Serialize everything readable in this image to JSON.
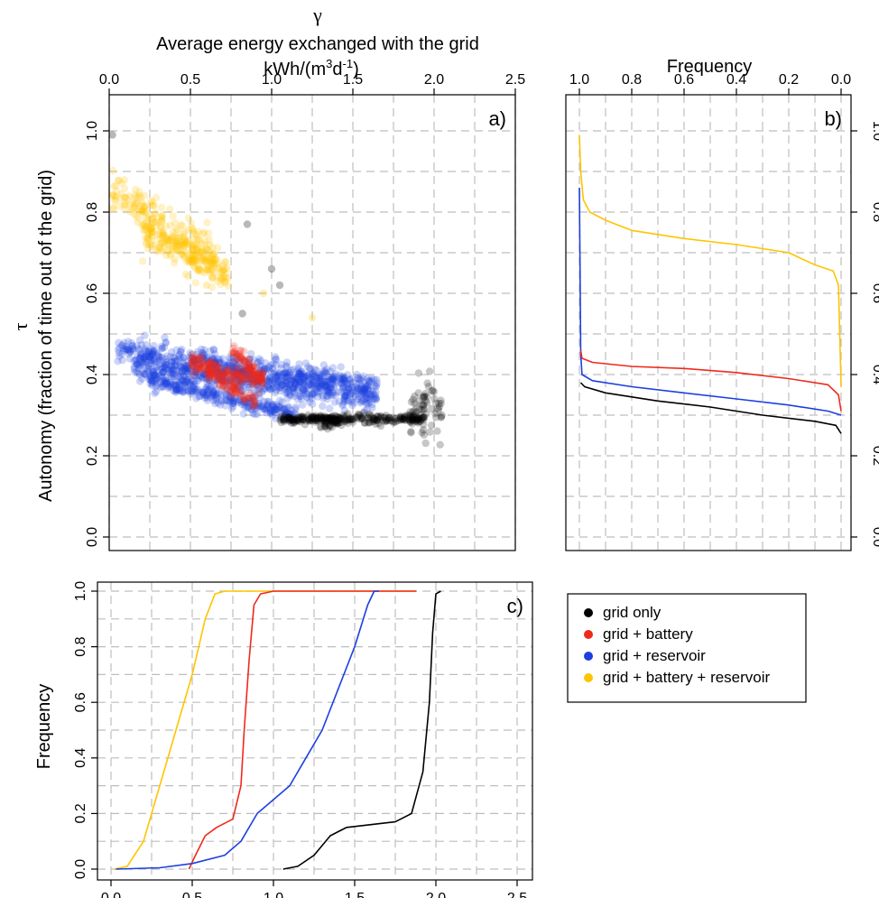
{
  "colors": {
    "grid_only": "#000000",
    "grid_battery": "#ee2a1c",
    "grid_reservoir": "#1c3fe0",
    "grid_battery_reservoir": "#ffc400",
    "grid_line": "#bdbdbd"
  },
  "top_axis": {
    "symbol": "γ",
    "title": "Average energy exchanged with the grid",
    "unit_prefix": "kWh/(m",
    "unit_sup1": "3",
    "unit_mid": "d",
    "unit_sup2": "-1",
    "unit_suffix": ")"
  },
  "left_axis": {
    "symbol": "τ",
    "title": "Autonomy (fraction of time out of the grid)"
  },
  "chart_data": [
    {
      "panel": "a)",
      "type": "scatter",
      "xlim": [
        0,
        2.5
      ],
      "ylim": [
        0,
        1.0
      ],
      "xticks": [
        "0.0",
        "0.5",
        "1.0",
        "1.5",
        "2.0",
        "2.5"
      ],
      "yticks": [
        "0.0",
        "0.2",
        "0.4",
        "0.6",
        "0.8",
        "1.0"
      ],
      "grid": true,
      "series": [
        {
          "name": "grid + battery + reservoir",
          "color": "#ffc400",
          "bands": [
            {
              "x": [
                0.02,
                0.65
              ],
              "y_center": [
                0.85,
                0.69
              ],
              "spread": 0.025
            },
            {
              "x": [
                0.2,
                0.75
              ],
              "y_center": [
                0.75,
                0.64
              ],
              "spread": 0.02
            }
          ],
          "isolated": [
            [
              0.6,
              0.62
            ],
            [
              0.95,
              0.6
            ],
            [
              1.25,
              0.54
            ]
          ]
        },
        {
          "name": "grid + reservoir",
          "color": "#1c3fe0",
          "bands": [
            {
              "x": [
                0.05,
                1.65
              ],
              "y_center": [
                0.46,
                0.37
              ],
              "spread": 0.015
            },
            {
              "x": [
                0.15,
                1.65
              ],
              "y_center": [
                0.42,
                0.34
              ],
              "spread": 0.015
            },
            {
              "x": [
                0.25,
                1.15
              ],
              "y_center": [
                0.39,
                0.3
              ],
              "spread": 0.01
            }
          ]
        },
        {
          "name": "grid + battery",
          "color": "#ee2a1c",
          "bands": [
            {
              "x": [
                0.5,
                0.95
              ],
              "y_center": [
                0.43,
                0.38
              ],
              "spread": 0.012
            },
            {
              "x": [
                0.6,
                0.9
              ],
              "y_center": [
                0.41,
                0.33
              ],
              "spread": 0.01
            },
            {
              "x": [
                0.75,
                0.95
              ],
              "y_center": [
                0.46,
                0.39
              ],
              "spread": 0.012
            }
          ]
        },
        {
          "name": "grid only",
          "color": "#000000",
          "bands": [
            {
              "x": [
                1.05,
                1.95
              ],
              "y_center": [
                0.29,
                0.29
              ],
              "spread": 0.005
            },
            {
              "x": [
                1.3,
                1.45
              ],
              "y_center": [
                0.285,
                0.285
              ],
              "spread": 0.008
            },
            {
              "x": [
                1.85,
                2.05
              ],
              "y_center": [
                0.32,
                0.32
              ],
              "spread": 0.035
            }
          ],
          "isolated": [
            [
              0.02,
              0.99
            ],
            [
              0.85,
              0.77
            ],
            [
              1.0,
              0.66
            ],
            [
              1.05,
              0.62
            ],
            [
              0.82,
              0.55
            ]
          ]
        }
      ]
    },
    {
      "panel": "b)",
      "type": "line",
      "xlabel": "Frequency",
      "xlim": [
        1.0,
        0.0
      ],
      "ylim": [
        0,
        1.0
      ],
      "xticks": [
        "1.0",
        "0.8",
        "0.6",
        "0.4",
        "0.2",
        "0.0"
      ],
      "yticks": [
        "0.0",
        "0.2",
        "0.4",
        "0.6",
        "0.8",
        "1.0"
      ],
      "grid": true,
      "series": [
        {
          "name": "grid + battery + reservoir",
          "color": "#ffc400",
          "points": [
            [
              1.0,
              0.99
            ],
            [
              0.995,
              0.9
            ],
            [
              0.985,
              0.83
            ],
            [
              0.96,
              0.8
            ],
            [
              0.9,
              0.78
            ],
            [
              0.8,
              0.755
            ],
            [
              0.6,
              0.735
            ],
            [
              0.4,
              0.72
            ],
            [
              0.2,
              0.7
            ],
            [
              0.1,
              0.67
            ],
            [
              0.03,
              0.655
            ],
            [
              0.01,
              0.62
            ],
            [
              0.0,
              0.37
            ]
          ]
        },
        {
          "name": "grid + reservoir",
          "color": "#1c3fe0",
          "points": [
            [
              1.0,
              0.86
            ],
            [
              0.998,
              0.7
            ],
            [
              0.995,
              0.45
            ],
            [
              0.99,
              0.4
            ],
            [
              0.95,
              0.385
            ],
            [
              0.8,
              0.37
            ],
            [
              0.6,
              0.355
            ],
            [
              0.4,
              0.34
            ],
            [
              0.2,
              0.325
            ],
            [
              0.05,
              0.31
            ],
            [
              0.0,
              0.3
            ]
          ]
        },
        {
          "name": "grid + battery",
          "color": "#ee2a1c",
          "points": [
            [
              0.995,
              0.46
            ],
            [
              0.99,
              0.44
            ],
            [
              0.95,
              0.43
            ],
            [
              0.8,
              0.42
            ],
            [
              0.6,
              0.415
            ],
            [
              0.4,
              0.405
            ],
            [
              0.2,
              0.39
            ],
            [
              0.05,
              0.375
            ],
            [
              0.01,
              0.35
            ],
            [
              0.0,
              0.31
            ]
          ]
        },
        {
          "name": "grid only",
          "color": "#000000",
          "points": [
            [
              0.995,
              0.38
            ],
            [
              0.98,
              0.37
            ],
            [
              0.9,
              0.355
            ],
            [
              0.7,
              0.335
            ],
            [
              0.5,
              0.32
            ],
            [
              0.3,
              0.3
            ],
            [
              0.1,
              0.285
            ],
            [
              0.02,
              0.275
            ],
            [
              0.0,
              0.255
            ]
          ]
        }
      ]
    },
    {
      "panel": "c)",
      "type": "line",
      "ylabel": "Frequency",
      "xlim": [
        0,
        2.5
      ],
      "ylim": [
        0,
        1.0
      ],
      "xticks": [
        "0.0",
        "0.5",
        "1.0",
        "1.5",
        "2.0",
        "2.5"
      ],
      "yticks": [
        "0.0",
        "0.2",
        "0.4",
        "0.6",
        "0.8",
        "1.0"
      ],
      "grid": true,
      "series": [
        {
          "name": "grid + battery + reservoir",
          "color": "#ffc400",
          "points": [
            [
              0.02,
              0.0
            ],
            [
              0.1,
              0.01
            ],
            [
              0.2,
              0.1
            ],
            [
              0.3,
              0.3
            ],
            [
              0.4,
              0.5
            ],
            [
              0.5,
              0.7
            ],
            [
              0.58,
              0.9
            ],
            [
              0.64,
              0.99
            ],
            [
              0.7,
              1.0
            ],
            [
              1.88,
              1.0
            ]
          ]
        },
        {
          "name": "grid + battery",
          "color": "#ee2a1c",
          "points": [
            [
              0.48,
              0.0
            ],
            [
              0.52,
              0.05
            ],
            [
              0.58,
              0.12
            ],
            [
              0.65,
              0.15
            ],
            [
              0.75,
              0.18
            ],
            [
              0.8,
              0.3
            ],
            [
              0.82,
              0.5
            ],
            [
              0.85,
              0.75
            ],
            [
              0.88,
              0.95
            ],
            [
              0.92,
              0.99
            ],
            [
              1.0,
              1.0
            ],
            [
              1.88,
              1.0
            ]
          ]
        },
        {
          "name": "grid + reservoir",
          "color": "#1c3fe0",
          "points": [
            [
              0.03,
              0.0
            ],
            [
              0.3,
              0.005
            ],
            [
              0.5,
              0.02
            ],
            [
              0.7,
              0.05
            ],
            [
              0.8,
              0.1
            ],
            [
              0.9,
              0.2
            ],
            [
              1.0,
              0.25
            ],
            [
              1.1,
              0.3
            ],
            [
              1.2,
              0.4
            ],
            [
              1.3,
              0.5
            ],
            [
              1.4,
              0.65
            ],
            [
              1.5,
              0.8
            ],
            [
              1.58,
              0.95
            ],
            [
              1.62,
              1.0
            ],
            [
              1.65,
              1.0
            ]
          ]
        },
        {
          "name": "grid only",
          "color": "#000000",
          "points": [
            [
              1.06,
              0.0
            ],
            [
              1.15,
              0.01
            ],
            [
              1.25,
              0.05
            ],
            [
              1.35,
              0.12
            ],
            [
              1.45,
              0.15
            ],
            [
              1.6,
              0.16
            ],
            [
              1.75,
              0.17
            ],
            [
              1.85,
              0.2
            ],
            [
              1.92,
              0.35
            ],
            [
              1.96,
              0.6
            ],
            [
              1.98,
              0.85
            ],
            [
              2.0,
              0.99
            ],
            [
              2.03,
              1.0
            ]
          ]
        }
      ]
    }
  ],
  "legend": {
    "entries": [
      {
        "label": "grid only",
        "color": "#000000"
      },
      {
        "label": "grid + battery",
        "color": "#ee2a1c"
      },
      {
        "label": "grid + reservoir",
        "color": "#1c3fe0"
      },
      {
        "label": "grid + battery + reservoir",
        "color": "#ffc400"
      }
    ]
  }
}
